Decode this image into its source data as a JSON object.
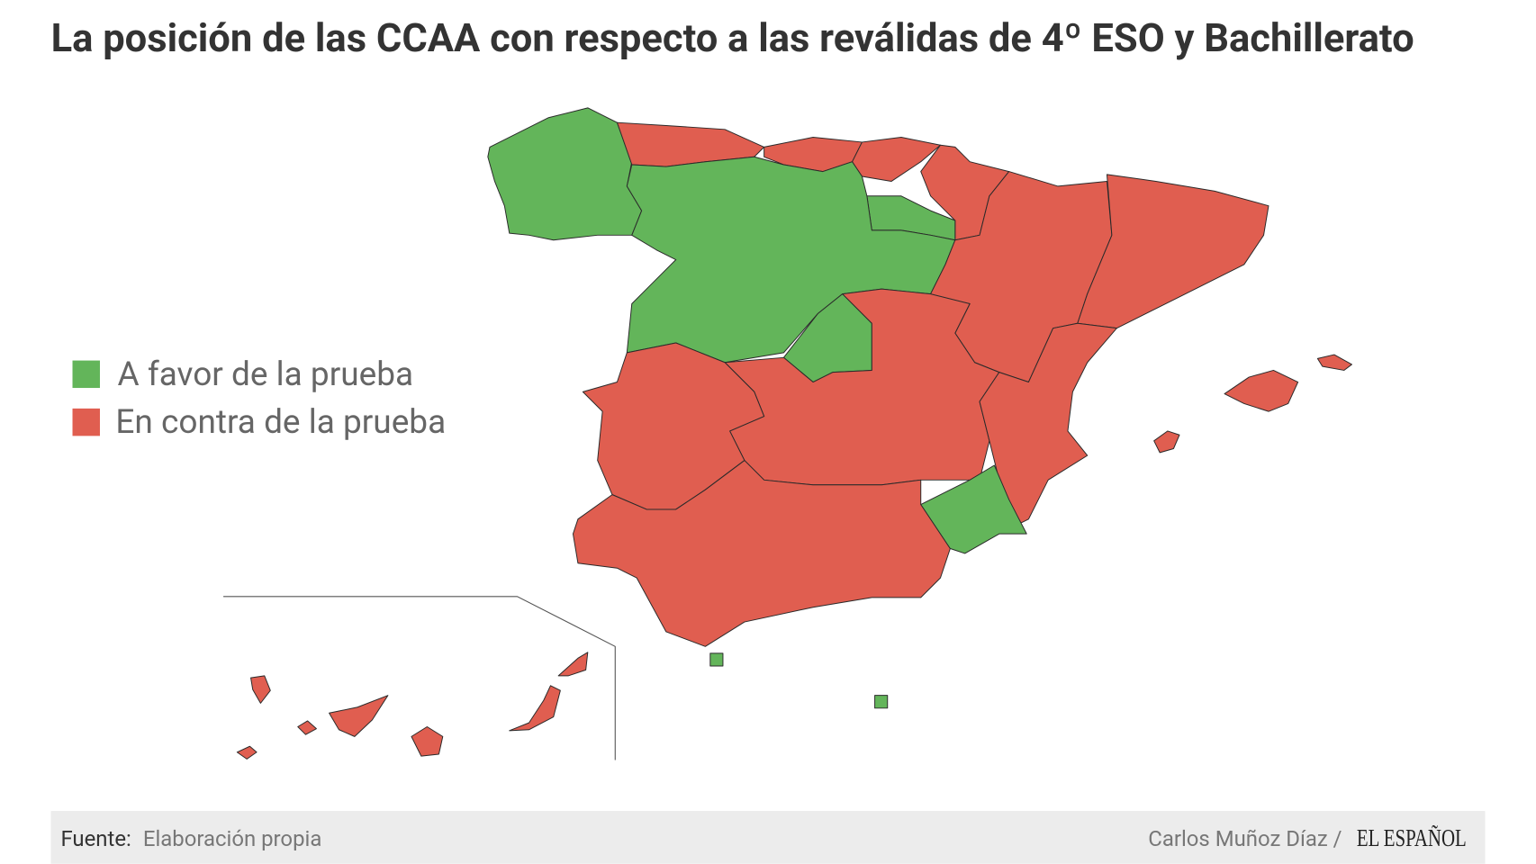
{
  "title": "La posición de las CCAA con respecto a las reválidas de 4º ESO y Bachillerato",
  "legend": {
    "items": [
      {
        "label": "A favor de la prueba",
        "color": "#63b55a"
      },
      {
        "label": "En contra de la prueba",
        "color": "#e05e50"
      }
    ]
  },
  "footer": {
    "source_label": "Fuente:",
    "source": "Elaboración propia",
    "author": "Carlos Muñoz Díaz /",
    "brand": "EL ESPAÑOL"
  }
}
